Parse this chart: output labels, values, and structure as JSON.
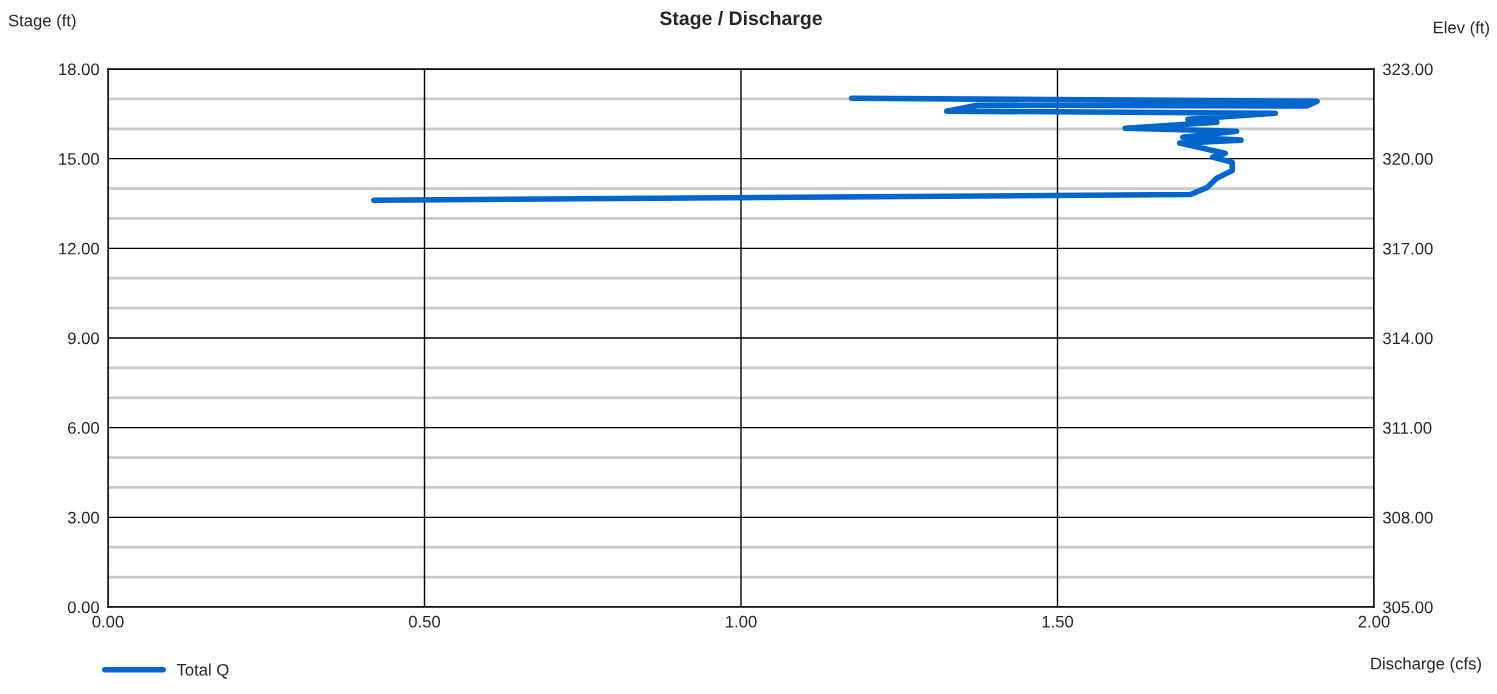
{
  "chart_data": {
    "type": "line",
    "title": "Stage / Discharge",
    "xlabel": "Discharge (cfs)",
    "ylabel": "Stage (ft)",
    "y2label": "Elev (ft)",
    "series": [
      {
        "name": "Total Q",
        "color": "#0066cc",
        "x": [
          0.42,
          1.71,
          1.736,
          1.752,
          1.776,
          1.776,
          1.745,
          1.765,
          1.693,
          1.79,
          1.698,
          1.783,
          1.607,
          1.752,
          1.706,
          1.844,
          1.325,
          1.373,
          1.894,
          1.91,
          1.175
        ],
        "values": [
          13.61,
          13.8,
          14.03,
          14.35,
          14.6,
          14.88,
          15.05,
          15.18,
          15.52,
          15.62,
          15.72,
          15.92,
          16.02,
          16.22,
          16.32,
          16.52,
          16.59,
          16.79,
          16.76,
          16.92,
          17.02
        ]
      }
    ],
    "xlim": [
      0,
      2
    ],
    "xticks": [
      {
        "value": 0,
        "label": "0.00"
      },
      {
        "value": 0.5,
        "label": "0.50"
      },
      {
        "value": 1,
        "label": "1.00"
      },
      {
        "value": 1.5,
        "label": "1.50"
      },
      {
        "value": 2,
        "label": "2.00"
      }
    ],
    "ylim": [
      0,
      18
    ],
    "yticks": [
      {
        "value": 0,
        "label": "0.00"
      },
      {
        "value": 1,
        "label": null
      },
      {
        "value": 2,
        "label": null
      },
      {
        "value": 3,
        "label": "3.00"
      },
      {
        "value": 4,
        "label": null
      },
      {
        "value": 5,
        "label": null
      },
      {
        "value": 6,
        "label": "6.00"
      },
      {
        "value": 7,
        "label": null
      },
      {
        "value": 8,
        "label": null
      },
      {
        "value": 9,
        "label": "9.00"
      },
      {
        "value": 10,
        "label": null
      },
      {
        "value": 11,
        "label": null
      },
      {
        "value": 12,
        "label": "12.00"
      },
      {
        "value": 13,
        "label": null
      },
      {
        "value": 14,
        "label": null
      },
      {
        "value": 15,
        "label": "15.00"
      },
      {
        "value": 16,
        "label": null
      },
      {
        "value": 17,
        "label": null
      },
      {
        "value": 18,
        "label": "18.00"
      }
    ],
    "y2lim": [
      305,
      323
    ],
    "y2ticks": [
      {
        "value": 305,
        "label": "305.00"
      },
      {
        "value": 308,
        "label": "308.00"
      },
      {
        "value": 311,
        "label": "311.00"
      },
      {
        "value": 314,
        "label": "314.00"
      },
      {
        "value": 317,
        "label": "317.00"
      },
      {
        "value": 320,
        "label": "320.00"
      },
      {
        "value": 323,
        "label": "323.00"
      }
    ],
    "grid": true,
    "legend": "bottom left",
    "marker": "none",
    "line_style": "solid"
  }
}
